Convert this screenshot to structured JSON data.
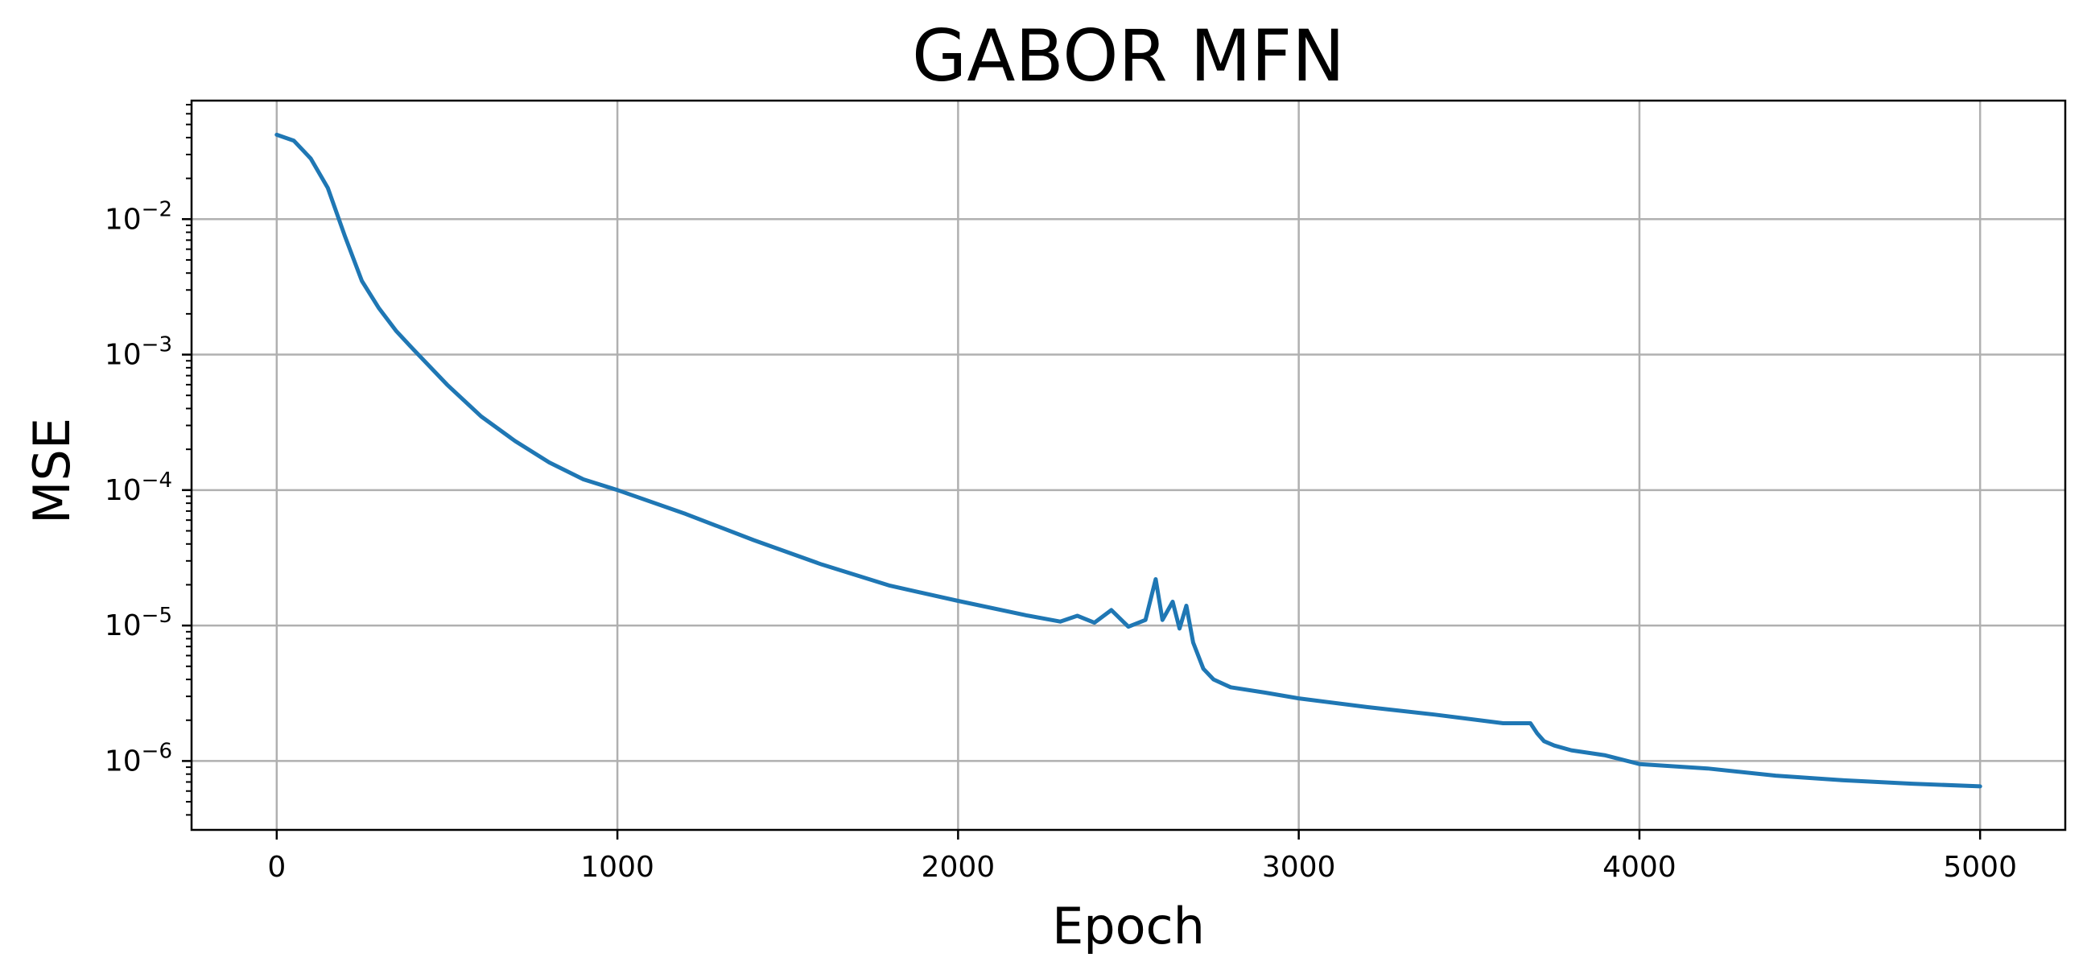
{
  "chart_data": {
    "type": "line",
    "title": "GABOR MFN",
    "xlabel": "Epoch",
    "ylabel": "MSE",
    "xlim": [
      -250,
      5250
    ],
    "ylim": [
      3.1e-07,
      0.075
    ],
    "yscale": "log",
    "grid": true,
    "line_color": "#1f77b4",
    "grid_color": "#b0b0b0",
    "x_ticks": [
      0,
      1000,
      2000,
      3000,
      4000,
      5000
    ],
    "x_tick_labels": [
      "0",
      "1000",
      "2000",
      "3000",
      "4000",
      "5000"
    ],
    "y_ticks": [
      1e-06,
      1e-05,
      0.0001,
      0.001,
      0.01
    ],
    "y_tick_labels": [
      {
        "base": "10",
        "exp": "−6"
      },
      {
        "base": "10",
        "exp": "−5"
      },
      {
        "base": "10",
        "exp": "−4"
      },
      {
        "base": "10",
        "exp": "−3"
      },
      {
        "base": "10",
        "exp": "−2"
      }
    ],
    "series": [
      {
        "x": [
          0,
          50,
          100,
          150,
          200,
          250,
          300,
          350,
          400,
          500,
          600,
          700,
          800,
          900,
          1000,
          1200,
          1400,
          1600,
          1800,
          2000,
          2200,
          2300,
          2350,
          2400,
          2450,
          2500,
          2550,
          2580,
          2600,
          2630,
          2650,
          2670,
          2690,
          2720,
          2750,
          2800,
          2900,
          3000,
          3200,
          3400,
          3600,
          3680,
          3700,
          3720,
          3750,
          3800,
          3900,
          4000,
          4200,
          4400,
          4600,
          4800,
          5000
        ],
        "y": [
          0.042,
          0.038,
          0.028,
          0.017,
          0.0075,
          0.0035,
          0.0022,
          0.0015,
          0.0011,
          0.0006,
          0.00035,
          0.00023,
          0.00016,
          0.00012,
          0.0001,
          6.67e-05,
          4.27e-05,
          2.82e-05,
          1.97e-05,
          1.52e-05,
          1.19e-05,
          1.07e-05,
          1.18e-05,
          1.05e-05,
          1.3e-05,
          9.8e-06,
          1.1e-05,
          2.2e-05,
          1.1e-05,
          1.5e-05,
          9.5e-06,
          1.4e-05,
          7.5e-06,
          4.8e-06,
          4e-06,
          3.5e-06,
          3.2e-06,
          2.9e-06,
          2.5e-06,
          2.2e-06,
          1.9e-06,
          1.9e-06,
          1.6e-06,
          1.4e-06,
          1.3e-06,
          1.2e-06,
          1.1e-06,
          9.5e-07,
          8.8e-07,
          7.8e-07,
          7.2e-07,
          6.8e-07,
          6.5e-07
        ]
      }
    ]
  }
}
